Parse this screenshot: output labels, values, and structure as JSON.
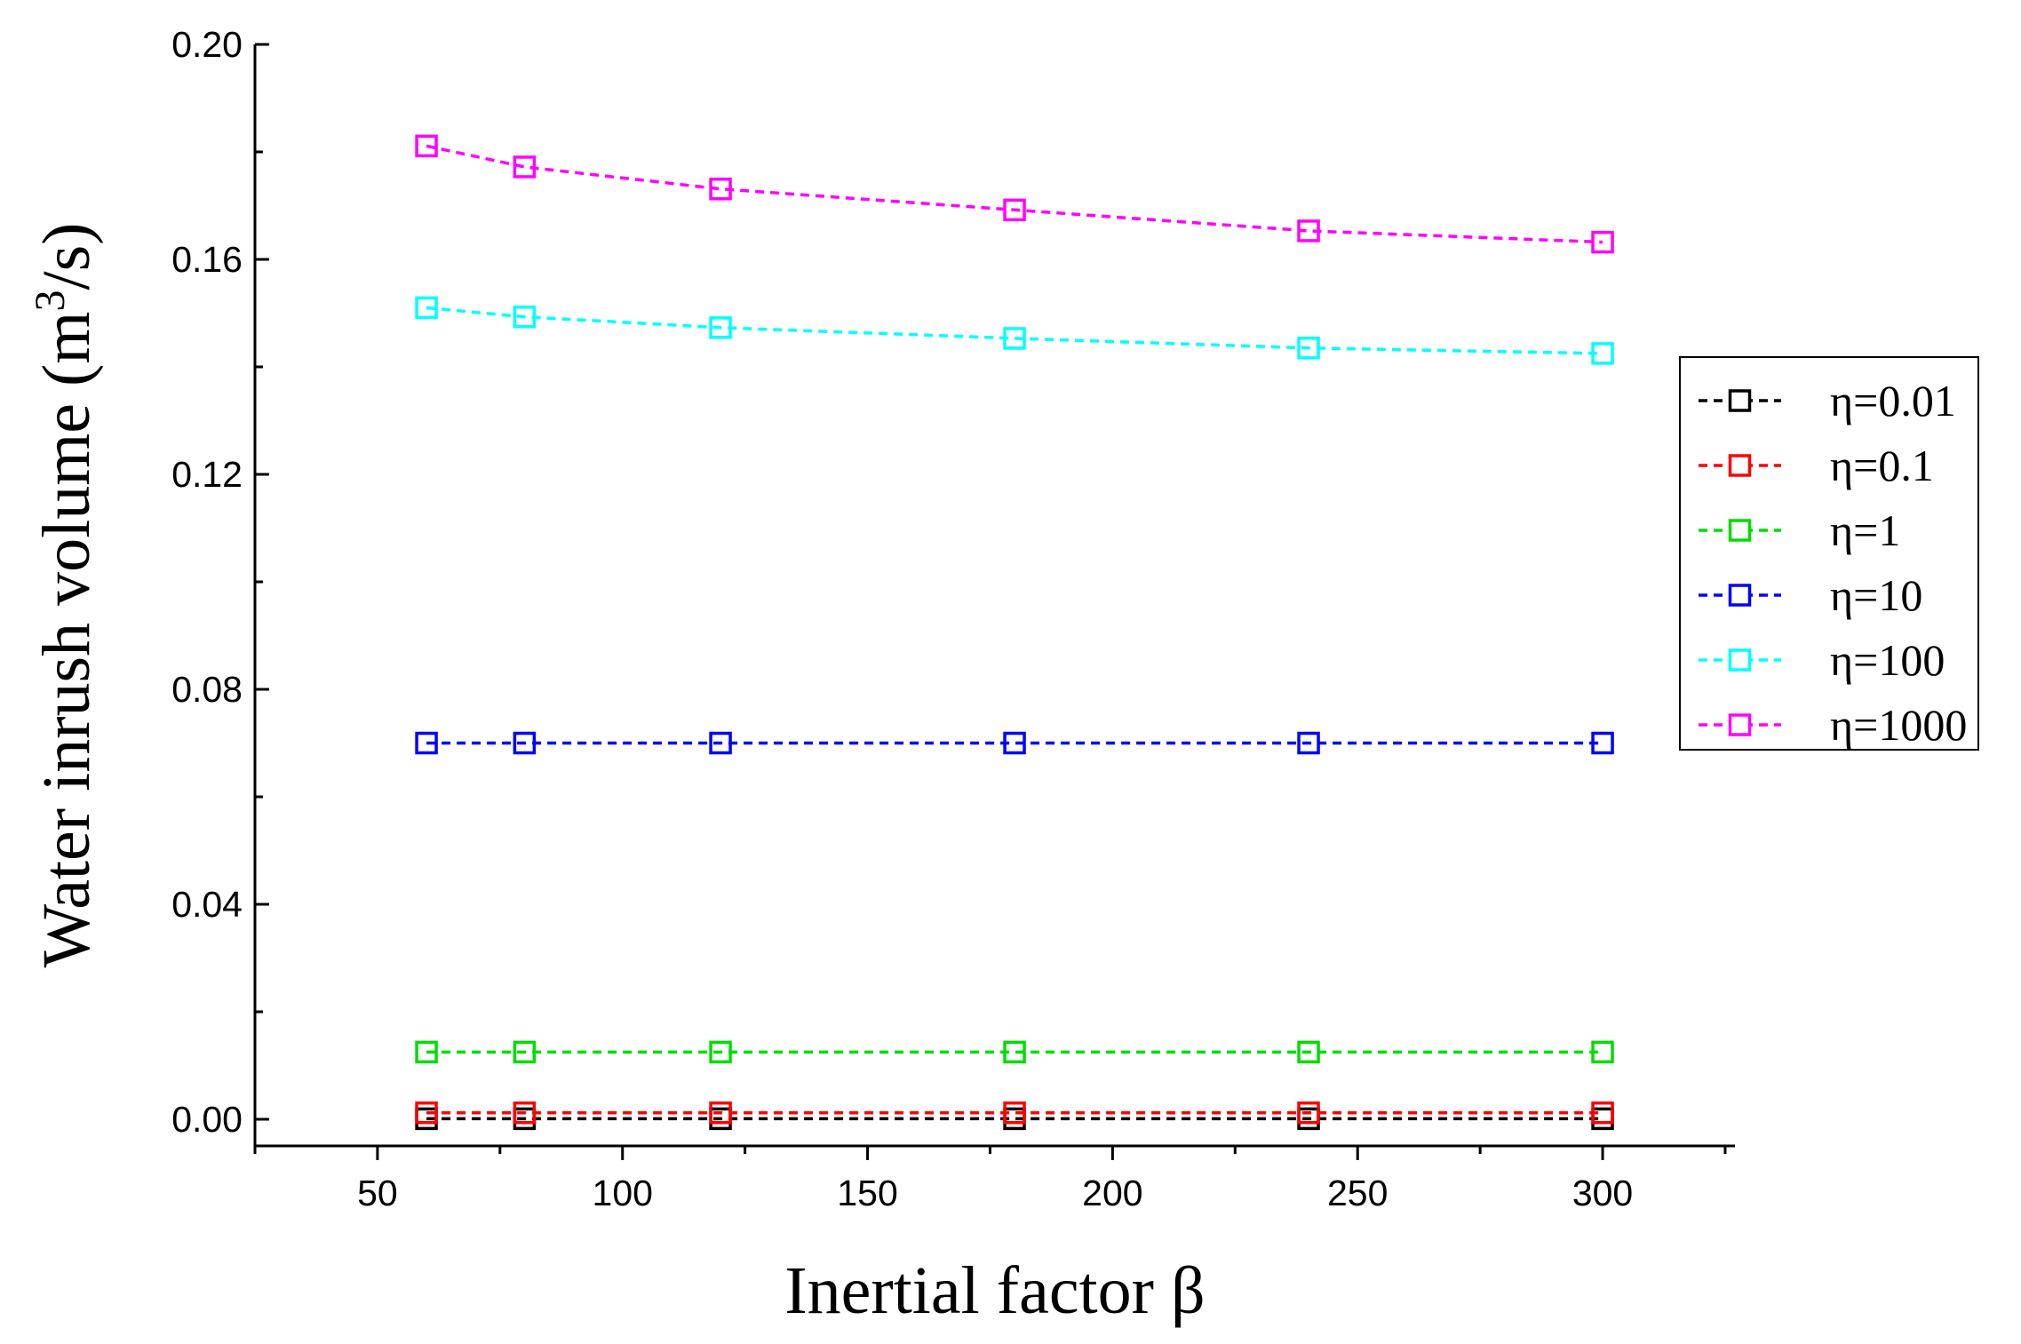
{
  "chart_data": {
    "type": "line",
    "title": "",
    "xlabel": "Inertial factor β",
    "ylabel_main": "Water inrush volume  (m",
    "ylabel_sup": "3",
    "ylabel_end": "/s)",
    "xlim": [
      25,
      325
    ],
    "ylim": [
      -0.005,
      0.2
    ],
    "x_ticks": [
      50,
      100,
      150,
      200,
      250,
      300
    ],
    "x_tick_labels": [
      "50",
      "100",
      "150",
      "200",
      "250",
      "300"
    ],
    "y_ticks": [
      0.0,
      0.04,
      0.08,
      0.12,
      0.16,
      0.2
    ],
    "y_tick_labels": [
      "0.00",
      "0.04",
      "0.08",
      "0.12",
      "0.16",
      "0.20"
    ],
    "x": [
      60,
      80,
      120,
      180,
      240,
      300
    ],
    "series": [
      {
        "name": "η=0.01",
        "color": "#000000",
        "values": [
          0.0001,
          0.0001,
          0.0001,
          0.0001,
          0.0001,
          0.0001
        ]
      },
      {
        "name": "η=0.1",
        "color": "#ff0000",
        "values": [
          0.0012,
          0.0012,
          0.0012,
          0.0012,
          0.0012,
          0.0012
        ]
      },
      {
        "name": "η=1",
        "color": "#00dd00",
        "values": [
          0.0125,
          0.0125,
          0.0125,
          0.0125,
          0.0125,
          0.0125
        ]
      },
      {
        "name": "η=10",
        "color": "#0000ff",
        "values": [
          0.07,
          0.07,
          0.07,
          0.07,
          0.07,
          0.07
        ]
      },
      {
        "name": "η=100",
        "color": "#00ffff",
        "values": [
          0.151,
          0.1493,
          0.1473,
          0.1453,
          0.1435,
          0.1425
        ]
      },
      {
        "name": "η=1000",
        "color": "#ff00ff",
        "values": [
          0.1811,
          0.1772,
          0.1731,
          0.1692,
          0.1653,
          0.1632
        ]
      }
    ],
    "legend": "right"
  }
}
